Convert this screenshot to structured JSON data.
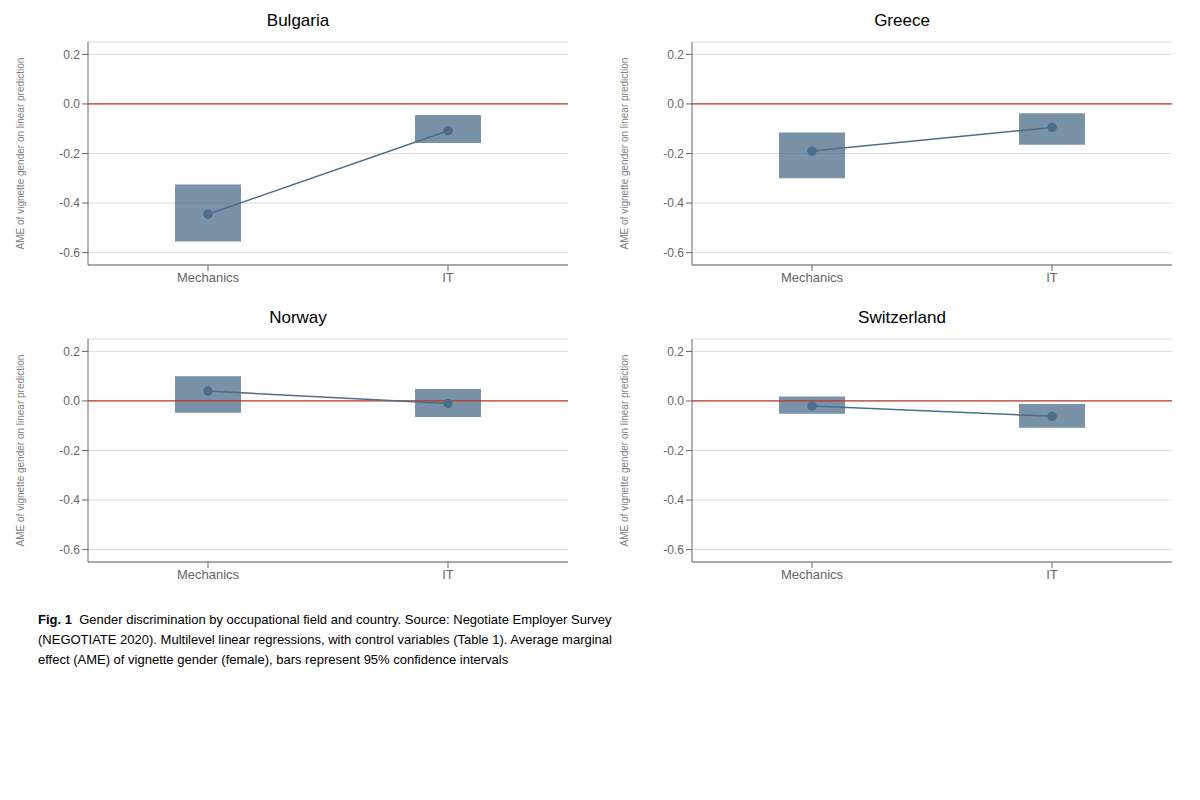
{
  "chart_data": [
    {
      "type": "line",
      "title": "Bulgaria",
      "categories": [
        "Mechanics",
        "IT"
      ],
      "ylabel": "AME of vignette gender on linear prediction",
      "ylim": [
        -0.65,
        0.25
      ],
      "yticks": [
        -0.6,
        -0.4,
        -0.2,
        {
          "value": 0,
          "label": "0.0"
        },
        0.2
      ],
      "grid": true,
      "marker": "circle",
      "reference_line": {
        "y": 0,
        "color": "#c0392b"
      },
      "series": [
        {
          "color": "#4d6e8a",
          "values": [
            -0.445,
            -0.108
          ],
          "ci_low": [
            -0.555,
            -0.158
          ],
          "ci_high": [
            -0.325,
            -0.045
          ]
        }
      ]
    },
    {
      "type": "line",
      "title": "Greece",
      "categories": [
        "Mechanics",
        "IT"
      ],
      "ylabel": "AME of vignette gender on linear prediction",
      "ylim": [
        -0.65,
        0.25
      ],
      "yticks": [
        -0.6,
        -0.4,
        -0.2,
        {
          "value": 0,
          "label": "0.0"
        },
        0.2
      ],
      "grid": true,
      "marker": "circle",
      "reference_line": {
        "y": 0,
        "color": "#c0392b"
      },
      "series": [
        {
          "color": "#4d6e8a",
          "values": [
            -0.19,
            -0.095
          ],
          "ci_low": [
            -0.3,
            -0.165
          ],
          "ci_high": [
            -0.115,
            -0.038
          ]
        }
      ]
    },
    {
      "type": "line",
      "title": "Norway",
      "categories": [
        "Mechanics",
        "IT"
      ],
      "ylabel": "AME of vignette gender on linear prediction",
      "ylim": [
        -0.65,
        0.25
      ],
      "yticks": [
        -0.6,
        -0.4,
        -0.2,
        {
          "value": 0,
          "label": "0.0"
        },
        0.2
      ],
      "grid": true,
      "marker": "circle",
      "reference_line": {
        "y": 0,
        "color": "#c0392b"
      },
      "series": [
        {
          "color": "#4d6e8a",
          "values": [
            0.04,
            -0.01
          ],
          "ci_low": [
            -0.048,
            -0.065
          ],
          "ci_high": [
            0.1,
            0.048
          ]
        }
      ]
    },
    {
      "type": "line",
      "title": "Switzerland",
      "categories": [
        "Mechanics",
        "IT"
      ],
      "ylabel": "AME of vignette gender on linear prediction",
      "ylim": [
        -0.65,
        0.25
      ],
      "yticks": [
        -0.6,
        -0.4,
        -0.2,
        {
          "value": 0,
          "label": "0.0"
        },
        0.2
      ],
      "grid": true,
      "marker": "circle",
      "reference_line": {
        "y": 0,
        "color": "#c0392b"
      },
      "series": [
        {
          "color": "#4d6e8a",
          "values": [
            -0.02,
            -0.062
          ],
          "ci_low": [
            -0.052,
            -0.108
          ],
          "ci_high": [
            0.018,
            -0.012
          ]
        }
      ]
    }
  ],
  "caption": {
    "label": "Fig. 1",
    "lines": [
      "  Gender discrimination by occupational field and country. Source: Negotiate Employer Survey",
      "(NEGOTIATE 2020). Multilevel linear regressions, with control variables (Table 1). Average marginal",
      "effect (AME) of vignette gender (female), bars represent 95% confidence intervals"
    ]
  }
}
